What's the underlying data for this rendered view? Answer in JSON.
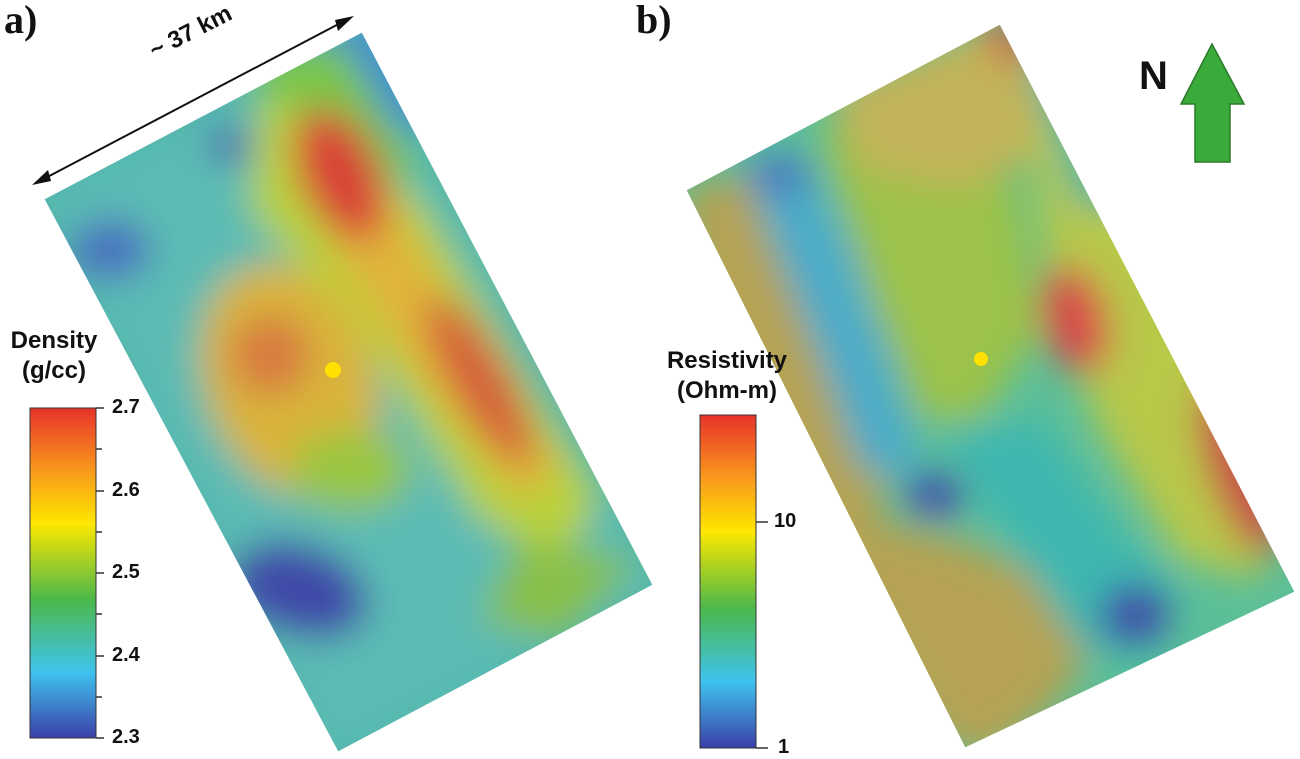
{
  "panels": {
    "a": {
      "label": "a)",
      "colorbar": {
        "title_line1": "Density",
        "title_line2": "(g/cc)",
        "ticks": [
          "2.7",
          "2.6",
          "2.5",
          "2.4",
          "2.3"
        ]
      },
      "scale_text": "~ 37 km"
    },
    "b": {
      "label": "b)",
      "colorbar": {
        "title_line1": "Resistivity",
        "title_line2": "(Ohm-m)",
        "ticks": [
          "10",
          "1"
        ]
      }
    }
  },
  "north_arrow": {
    "label": "N",
    "color": "#3aaa3a"
  },
  "well_marker": {
    "color": "#ffe000"
  },
  "colors": {
    "scale_low": "#3b3fa8",
    "scale_mid": "#4cb84a",
    "scale_high": "#e8322a"
  }
}
